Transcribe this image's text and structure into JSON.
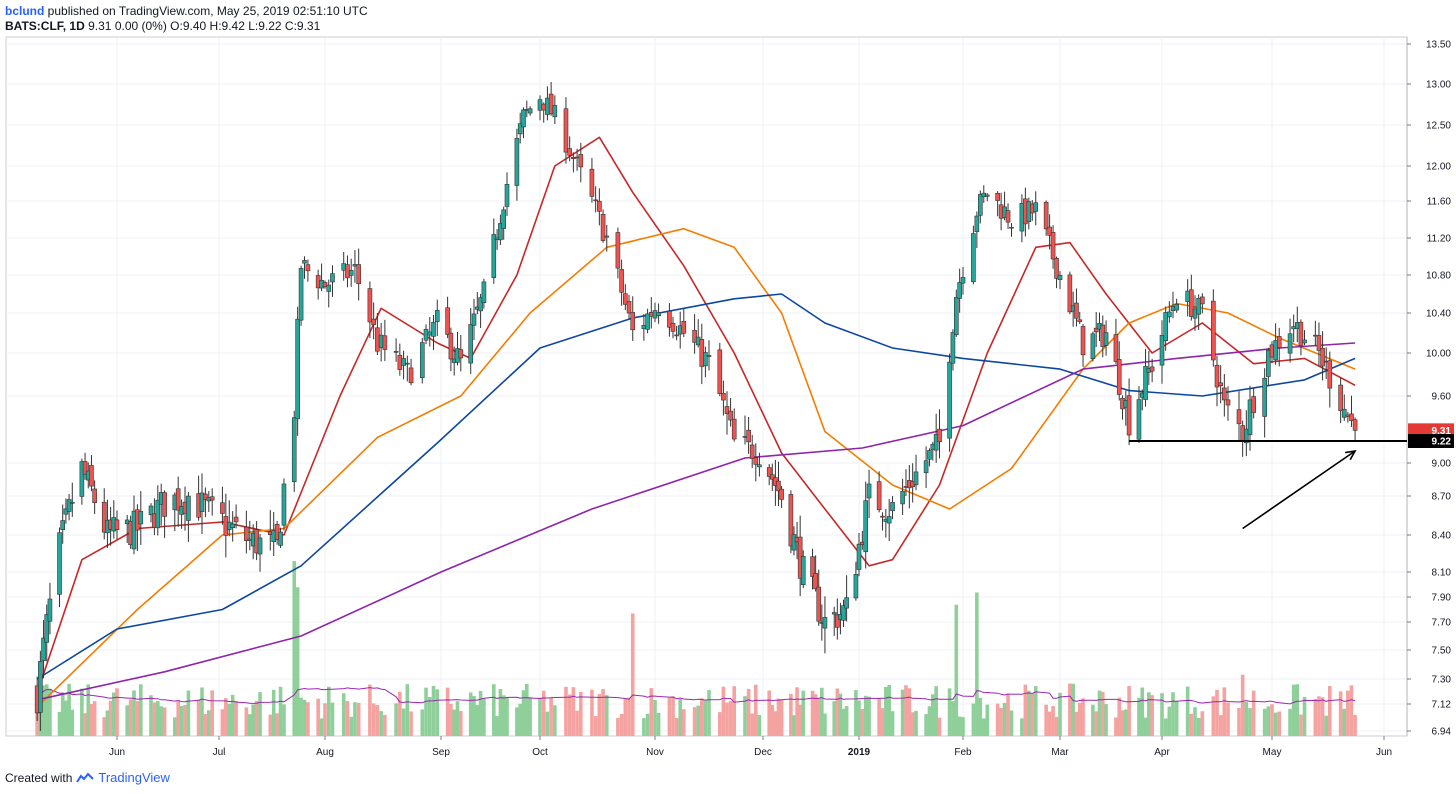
{
  "header": {
    "username": "bclund",
    "published_text": "published on TradingView.com, May 25, 2019 02:51:10 UTC",
    "symbol_line": "BATS:CLF, 1D",
    "ohlc_text": "9.31 0.00 (0%) O:9.40 H:9.42 L:9.22 C:9.31"
  },
  "footer": {
    "created_with": "Created with",
    "brand": "TradingView",
    "icon": "tradingview-logo-icon"
  },
  "colors": {
    "up_candle": "#26a69a",
    "down_candle": "#ef5350",
    "ma_red": "#c62828",
    "ma_orange": "#f57c00",
    "ma_blue": "#0d47a1",
    "ma_purple": "#8e24aa",
    "volume_up": "#8fcf9a",
    "volume_down": "#f4a3a0",
    "price_badge": "#e53935",
    "support_badge": "#000000"
  },
  "chart_data": {
    "type": "candlestick",
    "symbol": "BATS:CLF",
    "interval": "1D",
    "y_ticks": [
      13.5,
      13.0,
      12.5,
      12.0,
      11.6,
      11.2,
      10.8,
      10.4,
      10.0,
      9.6,
      9.22,
      9.0,
      8.7,
      8.4,
      8.1,
      7.9,
      7.7,
      7.5,
      7.3,
      7.12,
      6.94
    ],
    "x_tick_labels": [
      "Jun",
      "Jul",
      "Aug",
      "Sep",
      "Oct",
      "Nov",
      "Dec",
      "2019",
      "Feb",
      "Mar",
      "Apr",
      "May",
      "Jun"
    ],
    "close_anchors": [
      {
        "date": "2018-05-07",
        "close": 7.2
      },
      {
        "date": "2018-05-14",
        "close": 8.3
      },
      {
        "date": "2018-05-21",
        "close": 8.95
      },
      {
        "date": "2018-05-29",
        "close": 8.4
      },
      {
        "date": "2018-06-07",
        "close": 8.45
      },
      {
        "date": "2018-06-15",
        "close": 8.65
      },
      {
        "date": "2018-06-22",
        "close": 8.7
      },
      {
        "date": "2018-07-02",
        "close": 8.5
      },
      {
        "date": "2018-07-10",
        "close": 8.35
      },
      {
        "date": "2018-07-18",
        "close": 8.3
      },
      {
        "date": "2018-07-23",
        "close": 9.5
      },
      {
        "date": "2018-07-25",
        "close": 10.9
      },
      {
        "date": "2018-08-01",
        "close": 10.7
      },
      {
        "date": "2018-08-09",
        "close": 10.85
      },
      {
        "date": "2018-08-15",
        "close": 10.1
      },
      {
        "date": "2018-08-23",
        "close": 9.8
      },
      {
        "date": "2018-08-31",
        "close": 10.3
      },
      {
        "date": "2018-09-07",
        "close": 9.9
      },
      {
        "date": "2018-09-14",
        "close": 10.6
      },
      {
        "date": "2018-09-21",
        "close": 11.8
      },
      {
        "date": "2018-09-26",
        "close": 12.6
      },
      {
        "date": "2018-10-01",
        "close": 12.85
      },
      {
        "date": "2018-10-05",
        "close": 12.6
      },
      {
        "date": "2018-10-12",
        "close": 11.9
      },
      {
        "date": "2018-10-19",
        "close": 11.2
      },
      {
        "date": "2018-10-26",
        "close": 10.2
      },
      {
        "date": "2018-11-02",
        "close": 10.5
      },
      {
        "date": "2018-11-09",
        "close": 10.2
      },
      {
        "date": "2018-11-16",
        "close": 9.9
      },
      {
        "date": "2018-11-23",
        "close": 9.2
      },
      {
        "date": "2018-11-30",
        "close": 9.1
      },
      {
        "date": "2018-12-07",
        "close": 8.7
      },
      {
        "date": "2018-12-14",
        "close": 8.1
      },
      {
        "date": "2018-12-21",
        "close": 7.7
      },
      {
        "date": "2018-12-28",
        "close": 7.8
      },
      {
        "date": "2019-01-04",
        "close": 8.7
      },
      {
        "date": "2019-01-11",
        "close": 8.6
      },
      {
        "date": "2019-01-18",
        "close": 8.9
      },
      {
        "date": "2019-01-25",
        "close": 9.2
      },
      {
        "date": "2019-01-30",
        "close": 10.6
      },
      {
        "date": "2019-02-05",
        "close": 11.5
      },
      {
        "date": "2019-02-08",
        "close": 11.7
      },
      {
        "date": "2019-02-15",
        "close": 11.4
      },
      {
        "date": "2019-02-22",
        "close": 11.5
      },
      {
        "date": "2019-03-01",
        "close": 10.8
      },
      {
        "date": "2019-03-08",
        "close": 10.1
      },
      {
        "date": "2019-03-15",
        "close": 10.2
      },
      {
        "date": "2019-03-22",
        "close": 9.4
      },
      {
        "date": "2019-03-29",
        "close": 9.9
      },
      {
        "date": "2019-04-05",
        "close": 10.6
      },
      {
        "date": "2019-04-12",
        "close": 10.4
      },
      {
        "date": "2019-04-18",
        "close": 9.5
      },
      {
        "date": "2019-04-23",
        "close": 9.3
      },
      {
        "date": "2019-04-30",
        "close": 10.0
      },
      {
        "date": "2019-05-07",
        "close": 10.3
      },
      {
        "date": "2019-05-14",
        "close": 10.0
      },
      {
        "date": "2019-05-21",
        "close": 9.5
      },
      {
        "date": "2019-05-24",
        "close": 9.31
      }
    ],
    "moving_averages": [
      {
        "color_key": "ma_red",
        "points": [
          [
            "2018-05-07",
            7.2
          ],
          [
            "2018-05-21",
            8.2
          ],
          [
            "2018-06-07",
            8.45
          ],
          [
            "2018-07-02",
            8.5
          ],
          [
            "2018-07-20",
            8.4
          ],
          [
            "2018-08-05",
            9.6
          ],
          [
            "2018-08-16",
            10.45
          ],
          [
            "2018-08-31",
            10.1
          ],
          [
            "2018-09-10",
            9.95
          ],
          [
            "2018-09-24",
            10.8
          ],
          [
            "2018-10-05",
            12.0
          ],
          [
            "2018-10-17",
            12.35
          ],
          [
            "2018-10-26",
            11.7
          ],
          [
            "2018-11-09",
            10.9
          ],
          [
            "2018-11-23",
            10.0
          ],
          [
            "2018-12-07",
            9.1
          ],
          [
            "2018-12-21",
            8.6
          ],
          [
            "2019-01-04",
            8.15
          ],
          [
            "2019-01-11",
            8.2
          ],
          [
            "2019-01-25",
            8.8
          ],
          [
            "2019-02-08",
            10.0
          ],
          [
            "2019-02-22",
            11.1
          ],
          [
            "2019-03-04",
            11.15
          ],
          [
            "2019-03-15",
            10.6
          ],
          [
            "2019-03-29",
            10.0
          ],
          [
            "2019-04-12",
            10.3
          ],
          [
            "2019-04-26",
            9.9
          ],
          [
            "2019-05-10",
            9.95
          ],
          [
            "2019-05-24",
            9.7
          ]
        ]
      },
      {
        "color_key": "ma_orange",
        "points": [
          [
            "2018-05-07",
            7.1
          ],
          [
            "2018-06-07",
            7.8
          ],
          [
            "2018-07-02",
            8.4
          ],
          [
            "2018-07-20",
            8.45
          ],
          [
            "2018-08-15",
            9.25
          ],
          [
            "2018-09-07",
            9.6
          ],
          [
            "2018-09-28",
            10.4
          ],
          [
            "2018-10-19",
            11.1
          ],
          [
            "2018-11-09",
            11.3
          ],
          [
            "2018-11-23",
            11.1
          ],
          [
            "2018-12-07",
            10.4
          ],
          [
            "2018-12-21",
            9.3
          ],
          [
            "2019-01-11",
            8.8
          ],
          [
            "2019-01-28",
            8.6
          ],
          [
            "2019-02-15",
            8.95
          ],
          [
            "2019-03-08",
            9.85
          ],
          [
            "2019-03-22",
            10.3
          ],
          [
            "2019-04-05",
            10.5
          ],
          [
            "2019-04-19",
            10.4
          ],
          [
            "2019-05-03",
            10.15
          ],
          [
            "2019-05-24",
            9.85
          ]
        ]
      },
      {
        "color_key": "ma_blue",
        "points": [
          [
            "2018-05-07",
            7.3
          ],
          [
            "2018-06-01",
            7.65
          ],
          [
            "2018-07-02",
            7.8
          ],
          [
            "2018-07-25",
            8.15
          ],
          [
            "2018-08-31",
            9.2
          ],
          [
            "2018-10-01",
            10.05
          ],
          [
            "2018-10-26",
            10.35
          ],
          [
            "2018-11-23",
            10.55
          ],
          [
            "2018-12-07",
            10.6
          ],
          [
            "2018-12-21",
            10.3
          ],
          [
            "2019-01-11",
            10.05
          ],
          [
            "2019-02-01",
            9.95
          ],
          [
            "2019-03-01",
            9.85
          ],
          [
            "2019-03-22",
            9.65
          ],
          [
            "2019-04-12",
            9.6
          ],
          [
            "2019-05-10",
            9.75
          ],
          [
            "2019-05-24",
            9.95
          ]
        ]
      },
      {
        "color_key": "ma_purple",
        "points": [
          [
            "2018-05-07",
            7.15
          ],
          [
            "2018-06-15",
            7.35
          ],
          [
            "2018-07-25",
            7.6
          ],
          [
            "2018-09-01",
            8.1
          ],
          [
            "2018-10-15",
            8.6
          ],
          [
            "2018-11-26",
            9.05
          ],
          [
            "2019-01-02",
            9.15
          ],
          [
            "2019-02-01",
            9.35
          ],
          [
            "2019-03-08",
            9.85
          ],
          [
            "2019-04-05",
            9.95
          ],
          [
            "2019-05-03",
            10.05
          ],
          [
            "2019-05-24",
            10.1
          ]
        ]
      }
    ],
    "volume_hotspots": [
      {
        "date": "2018-07-23",
        "level": 1.0
      },
      {
        "date": "2018-07-24",
        "level": 0.85
      },
      {
        "date": "2018-10-26",
        "level": 0.7
      },
      {
        "date": "2019-01-30",
        "level": 0.75
      },
      {
        "date": "2019-02-05",
        "level": 0.82
      },
      {
        "date": "2019-04-23",
        "level": 0.35
      }
    ],
    "support_level": 9.22,
    "last_price": 9.31,
    "annotations": [
      {
        "type": "horizontal-line",
        "value": 9.22,
        "from": "2019-03-22",
        "to": "2019-06-03"
      },
      {
        "type": "arrow",
        "from_date": "2019-04-23",
        "from_value": 8.45,
        "to_date": "2019-05-24",
        "to_value": 9.12
      }
    ]
  }
}
